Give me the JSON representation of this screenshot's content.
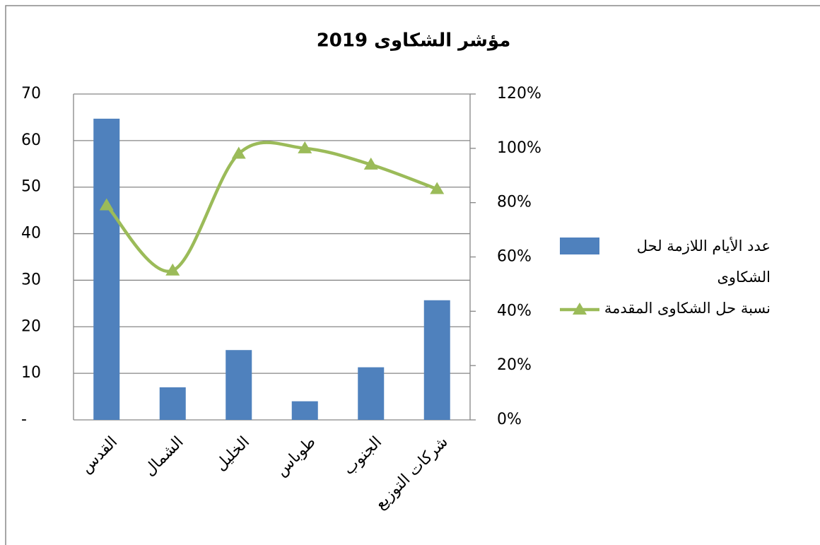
{
  "chart_data": {
    "type": "bar-line",
    "title": "مؤشر الشكاوى 2019",
    "categories": [
      "القدس",
      "الشمال",
      "الخليل",
      "طوباس",
      "الجنوب",
      "شركات التوزيع"
    ],
    "series": [
      {
        "name": "عدد الأيام اللازمة لحل الشكاوى",
        "type": "bar",
        "color": "#4f81bd",
        "values": [
          64.7,
          7,
          15,
          4,
          11.3,
          25.7
        ]
      },
      {
        "name": "نسبة حل الشكاوى المقدمة",
        "type": "line",
        "axis": "y2",
        "color": "#9bbb59",
        "values": [
          79,
          55,
          98,
          100,
          94,
          85
        ]
      }
    ],
    "ylim": [
      0,
      70
    ],
    "yticks": [
      {
        "value": 0,
        "label": "-"
      },
      10,
      20,
      30,
      40,
      50,
      60,
      70
    ],
    "y2lim": [
      0,
      120
    ],
    "y2ticks": [
      {
        "value": 0,
        "label": "0%"
      },
      {
        "value": 20,
        "label": "20%"
      },
      {
        "value": 40,
        "label": "40%"
      },
      {
        "value": 60,
        "label": "60%"
      },
      {
        "value": 80,
        "label": "80%"
      },
      {
        "value": 100,
        "label": "100%"
      },
      {
        "value": 120,
        "label": "120%"
      }
    ],
    "grid": true,
    "legend": "right"
  }
}
